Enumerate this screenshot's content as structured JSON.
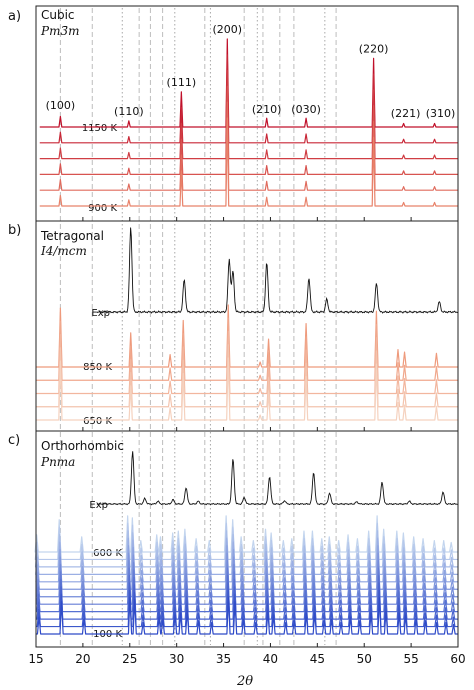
{
  "chart_data": {
    "type": "line",
    "xlabel": "2θ",
    "xlim": [
      15,
      60
    ],
    "x_ticks": [
      "15",
      "20",
      "25",
      "30",
      "35",
      "40",
      "45",
      "50",
      "55",
      "60"
    ],
    "reference_lines": {
      "dashed": [
        17.6,
        21.0,
        26.0,
        27.2,
        28.5,
        33.0,
        37.2,
        39.2,
        41.0,
        42.5,
        47.0
      ],
      "dotted": [
        24.2,
        29.8,
        33.6,
        38.6,
        45.8
      ]
    },
    "panels": [
      {
        "letter": "a)",
        "phase": "Cubic",
        "space_group": "Pm3̄m",
        "top_label": "1150 K",
        "bottom_label": "900 K",
        "n_calc": 6,
        "color_high": "#c0102a",
        "color_low": "#e8826a",
        "peaks": [
          {
            "hkl": "(100)",
            "x": 17.6,
            "h": 0.12
          },
          {
            "hkl": "(110)",
            "x": 24.9,
            "h": 0.07
          },
          {
            "hkl": "(111)",
            "x": 30.5,
            "h": 0.4
          },
          {
            "hkl": "(200)",
            "x": 35.4,
            "h": 1.0
          },
          {
            "hkl": "(210)",
            "x": 39.6,
            "h": 0.1
          },
          {
            "hkl": "(030)",
            "x": 43.8,
            "h": 0.1
          },
          {
            "hkl": "(220)",
            "x": 51.0,
            "h": 0.78
          },
          {
            "hkl": "(221)",
            "x": 54.2,
            "h": 0.04
          },
          {
            "hkl": "(310)",
            "x": 57.5,
            "h": 0.04
          }
        ]
      },
      {
        "letter": "b)",
        "phase": "Tetragonal",
        "space_group": "I4/mcm",
        "exp_label": "Exp",
        "top_label": "850 K",
        "bottom_label": "650 K",
        "n_calc": 5,
        "color_high": "#ee9a7c",
        "color_low": "#f5d2bf",
        "exp_peaks": [
          {
            "x": 25.1,
            "h": 1.0
          },
          {
            "x": 30.8,
            "h": 0.38
          },
          {
            "x": 35.6,
            "h": 0.62
          },
          {
            "x": 36.0,
            "h": 0.48
          },
          {
            "x": 39.6,
            "h": 0.58
          },
          {
            "x": 44.1,
            "h": 0.4
          },
          {
            "x": 46.0,
            "h": 0.15
          },
          {
            "x": 51.3,
            "h": 0.34
          },
          {
            "x": 58.0,
            "h": 0.12
          }
        ],
        "calc_peaks": [
          {
            "x": 17.6,
            "h": 0.95
          },
          {
            "x": 25.1,
            "h": 0.55
          },
          {
            "x": 29.3,
            "h": 0.2
          },
          {
            "x": 30.7,
            "h": 0.75
          },
          {
            "x": 35.5,
            "h": 1.0
          },
          {
            "x": 38.9,
            "h": 0.08
          },
          {
            "x": 39.8,
            "h": 0.45
          },
          {
            "x": 43.8,
            "h": 0.7
          },
          {
            "x": 51.3,
            "h": 0.9
          },
          {
            "x": 53.6,
            "h": 0.28
          },
          {
            "x": 54.3,
            "h": 0.24
          },
          {
            "x": 57.7,
            "h": 0.22
          }
        ]
      },
      {
        "letter": "c)",
        "phase": "Orthorhombic",
        "space_group": "Pnma",
        "exp_label": "Exp",
        "top_label": "600 K",
        "bottom_label": "100 K",
        "n_calc": 12,
        "color_high": "#c3d5ee",
        "color_low": "#2f4bc8",
        "exp_peaks": [
          {
            "x": 20.0,
            "h": 0.06
          },
          {
            "x": 25.3,
            "h": 0.96
          },
          {
            "x": 26.6,
            "h": 0.1
          },
          {
            "x": 28.0,
            "h": 0.05
          },
          {
            "x": 29.6,
            "h": 0.08
          },
          {
            "x": 31.0,
            "h": 0.3
          },
          {
            "x": 32.3,
            "h": 0.05
          },
          {
            "x": 36.0,
            "h": 0.82
          },
          {
            "x": 37.2,
            "h": 0.12
          },
          {
            "x": 39.9,
            "h": 0.5
          },
          {
            "x": 41.5,
            "h": 0.06
          },
          {
            "x": 44.6,
            "h": 0.58
          },
          {
            "x": 46.3,
            "h": 0.2
          },
          {
            "x": 49.2,
            "h": 0.04
          },
          {
            "x": 51.9,
            "h": 0.4
          },
          {
            "x": 54.8,
            "h": 0.05
          },
          {
            "x": 58.4,
            "h": 0.22
          }
        ],
        "calc_peaks": [
          {
            "x": 15.2,
            "h": 0.45
          },
          {
            "x": 17.6,
            "h": 0.85
          },
          {
            "x": 20.0,
            "h": 0.4
          },
          {
            "x": 24.9,
            "h": 0.95
          },
          {
            "x": 25.4,
            "h": 0.9
          },
          {
            "x": 26.3,
            "h": 0.3
          },
          {
            "x": 28.0,
            "h": 0.45
          },
          {
            "x": 28.4,
            "h": 0.4
          },
          {
            "x": 29.7,
            "h": 0.5
          },
          {
            "x": 30.3,
            "h": 0.55
          },
          {
            "x": 31.0,
            "h": 0.6
          },
          {
            "x": 32.2,
            "h": 0.35
          },
          {
            "x": 33.6,
            "h": 0.3
          },
          {
            "x": 35.4,
            "h": 0.95
          },
          {
            "x": 36.1,
            "h": 0.85
          },
          {
            "x": 37.0,
            "h": 0.4
          },
          {
            "x": 38.3,
            "h": 0.3
          },
          {
            "x": 39.6,
            "h": 0.6
          },
          {
            "x": 40.2,
            "h": 0.5
          },
          {
            "x": 41.5,
            "h": 0.3
          },
          {
            "x": 42.4,
            "h": 0.35
          },
          {
            "x": 43.7,
            "h": 0.55
          },
          {
            "x": 44.6,
            "h": 0.55
          },
          {
            "x": 45.6,
            "h": 0.35
          },
          {
            "x": 46.4,
            "h": 0.4
          },
          {
            "x": 47.4,
            "h": 0.3
          },
          {
            "x": 48.4,
            "h": 0.45
          },
          {
            "x": 49.4,
            "h": 0.35
          },
          {
            "x": 50.6,
            "h": 0.55
          },
          {
            "x": 51.5,
            "h": 0.95
          },
          {
            "x": 52.2,
            "h": 0.6
          },
          {
            "x": 53.6,
            "h": 0.55
          },
          {
            "x": 54.3,
            "h": 0.5
          },
          {
            "x": 55.4,
            "h": 0.4
          },
          {
            "x": 56.4,
            "h": 0.35
          },
          {
            "x": 57.6,
            "h": 0.3
          },
          {
            "x": 58.6,
            "h": 0.3
          },
          {
            "x": 59.4,
            "h": 0.25
          }
        ]
      }
    ]
  }
}
